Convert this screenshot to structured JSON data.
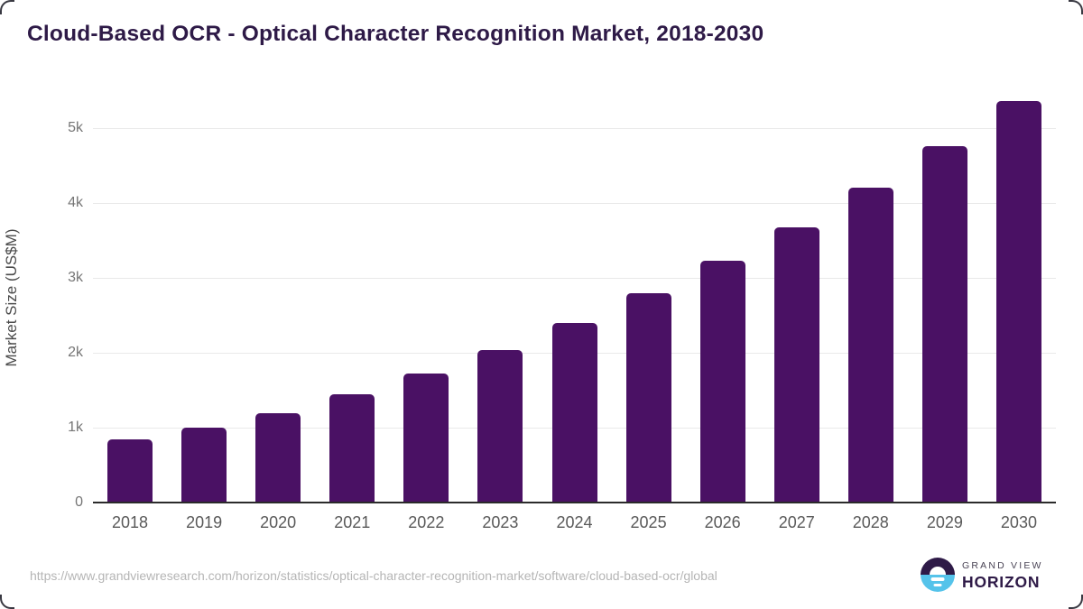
{
  "header": {
    "title": "Cloud-Based OCR - Optical Character Recognition Market, 2018-2030"
  },
  "chart_data": {
    "type": "bar",
    "title": "Cloud-Based OCR - Optical Character Recognition Market, 2018-2030",
    "categories": [
      "2018",
      "2019",
      "2020",
      "2021",
      "2022",
      "2023",
      "2024",
      "2025",
      "2026",
      "2027",
      "2028",
      "2029",
      "2030"
    ],
    "values": [
      840,
      1005,
      1195,
      1440,
      1725,
      2035,
      2395,
      2790,
      3225,
      3670,
      4200,
      4760,
      5365
    ],
    "xlabel": "",
    "ylabel": "Market Size (US$M)",
    "ylim": [
      0,
      5500
    ],
    "yticks": [
      {
        "value": 0,
        "label": "0"
      },
      {
        "value": 1000,
        "label": "1k"
      },
      {
        "value": 2000,
        "label": "2k"
      },
      {
        "value": 3000,
        "label": "3k"
      },
      {
        "value": 4000,
        "label": "4k"
      },
      {
        "value": 5000,
        "label": "5k"
      }
    ],
    "grid": "horizontal-only",
    "legend_position": "none",
    "bar_color": "#4a1164"
  },
  "colors": {
    "bar": "#4a1164",
    "title": "#2e1a47",
    "axis_label": "#4a4a4a",
    "tick": "#757575",
    "tick_x": "#595959",
    "grid": "#e9e9e9",
    "baseline": "#2b2b2b",
    "url": "#b5b5b5",
    "logo_purple": "#2e1a47",
    "logo_blue": "#55c3ea"
  },
  "footer": {
    "source_url": "https://www.grandviewresearch.com/horizon/statistics/optical-character-recognition-market/software/cloud-based-ocr/global",
    "logo": {
      "line1": "GRAND VIEW",
      "line2": "HORIZON"
    }
  }
}
